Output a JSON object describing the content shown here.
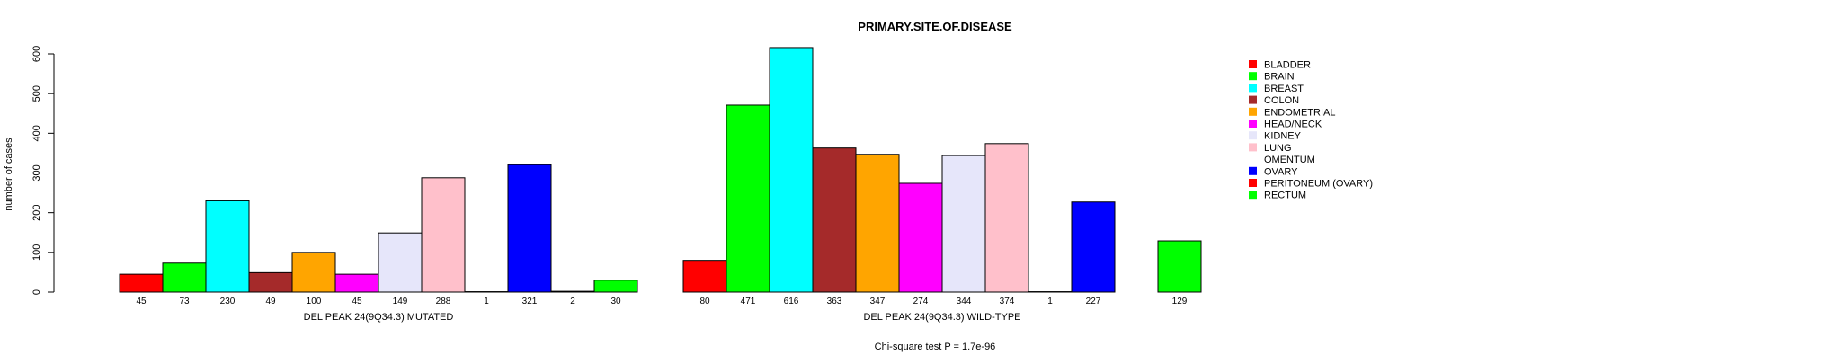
{
  "chart_data": {
    "type": "bar",
    "title": "PRIMARY.SITE.OF.DISEASE",
    "ylabel": "number of cases",
    "ylim": [
      0,
      620
    ],
    "yticks": [
      0,
      100,
      200,
      300,
      400,
      500,
      600
    ],
    "legend_placement": "right",
    "categories": [
      "BLADDER",
      "BRAIN",
      "BREAST",
      "COLON",
      "ENDOMETRIAL",
      "HEAD/NECK",
      "KIDNEY",
      "LUNG",
      "OMENTUM",
      "OVARY",
      "PERITONEUM (OVARY)",
      "RECTUM"
    ],
    "colors": [
      "#ff0000",
      "#00ff00",
      "#00ffff",
      "#a52a2a",
      "#ffa500",
      "#ff00ff",
      "#e6e6fa",
      "#ffc0cb",
      "#ffffff",
      "#0000ff",
      "#ff0000",
      "#00ff00"
    ],
    "groups": [
      {
        "label": "DEL PEAK 24(9Q34.3) MUTATED",
        "values": [
          45,
          73,
          230,
          49,
          100,
          45,
          149,
          288,
          1,
          321,
          2,
          30
        ]
      },
      {
        "label": "DEL PEAK 24(9Q34.3) WILD-TYPE",
        "values": [
          80,
          471,
          616,
          363,
          347,
          274,
          344,
          374,
          1,
          227,
          0,
          129
        ],
        "value_labels": [
          "80",
          "471",
          "616",
          "363",
          "347",
          "274",
          "344",
          "374",
          "1",
          "227",
          "",
          "129"
        ]
      }
    ],
    "footer": "Chi-square test P = 1.7e-96"
  }
}
